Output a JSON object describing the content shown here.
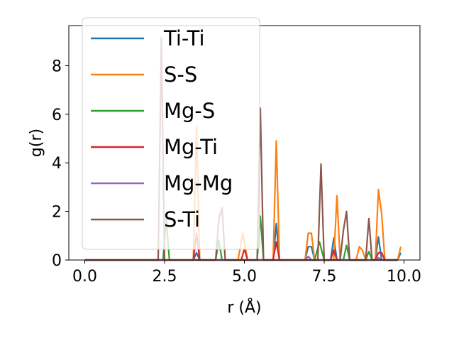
{
  "chart_data": {
    "type": "line",
    "xlabel": "r (Å)",
    "ylabel": "g(r)",
    "xlim": [
      -0.5,
      10.5
    ],
    "ylim": [
      0,
      9.65
    ],
    "xticks": [
      0.0,
      2.5,
      5.0,
      7.5,
      10.0
    ],
    "xtick_labels": [
      "0.0",
      "2.5",
      "5.0",
      "7.5",
      "10.0"
    ],
    "yticks": [
      0,
      2,
      4,
      6,
      8
    ],
    "ytick_labels": [
      "0",
      "2",
      "4",
      "6",
      "8"
    ],
    "grid": false,
    "legend_position": "top-left",
    "series": [
      {
        "name": "Ti-Ti",
        "color": "#1f77b4",
        "points": [
          [
            0,
            0
          ],
          [
            3.4,
            0
          ],
          [
            3.5,
            0.3
          ],
          [
            3.6,
            0
          ],
          [
            5.9,
            0
          ],
          [
            6.0,
            1.5
          ],
          [
            6.1,
            0
          ],
          [
            6.9,
            0
          ],
          [
            7.0,
            0.55
          ],
          [
            7.1,
            0.55
          ],
          [
            7.2,
            0
          ],
          [
            7.7,
            0
          ],
          [
            7.8,
            0.9
          ],
          [
            7.9,
            0
          ],
          [
            9.1,
            0
          ],
          [
            9.2,
            0.95
          ],
          [
            9.3,
            0
          ],
          [
            9.8,
            0
          ],
          [
            9.9,
            0.3
          ]
        ]
      },
      {
        "name": "S-S",
        "color": "#ff7f0e",
        "points": [
          [
            0,
            0
          ],
          [
            3.4,
            0
          ],
          [
            3.5,
            5.5
          ],
          [
            3.6,
            0
          ],
          [
            4.8,
            0
          ],
          [
            4.95,
            1.1
          ],
          [
            5.1,
            0
          ],
          [
            5.9,
            0
          ],
          [
            6.0,
            4.9
          ],
          [
            6.1,
            0
          ],
          [
            6.9,
            0
          ],
          [
            7.0,
            1.1
          ],
          [
            7.1,
            1.1
          ],
          [
            7.2,
            0
          ],
          [
            7.8,
            0
          ],
          [
            7.9,
            2.65
          ],
          [
            8.0,
            0
          ],
          [
            8.5,
            0
          ],
          [
            8.6,
            0.55
          ],
          [
            8.7,
            0.4
          ],
          [
            8.8,
            0
          ],
          [
            9.1,
            0
          ],
          [
            9.2,
            2.9
          ],
          [
            9.3,
            1.9
          ],
          [
            9.4,
            0
          ],
          [
            9.8,
            0
          ],
          [
            9.9,
            0.55
          ]
        ]
      },
      {
        "name": "Mg-S",
        "color": "#2ca02c",
        "points": [
          [
            0,
            0
          ],
          [
            2.45,
            0
          ],
          [
            2.55,
            1.7
          ],
          [
            2.65,
            0
          ],
          [
            4.1,
            0
          ],
          [
            4.2,
            0.8
          ],
          [
            4.3,
            0
          ],
          [
            5.4,
            0
          ],
          [
            5.5,
            1.8
          ],
          [
            5.6,
            0
          ],
          [
            7.2,
            0
          ],
          [
            7.35,
            0.75
          ],
          [
            7.5,
            0
          ],
          [
            8.1,
            0
          ],
          [
            8.2,
            0.6
          ],
          [
            8.3,
            0
          ],
          [
            8.8,
            0
          ],
          [
            8.9,
            0.35
          ],
          [
            9.0,
            0
          ],
          [
            9.8,
            0
          ]
        ]
      },
      {
        "name": "Mg-Ti",
        "color": "#d62728",
        "points": [
          [
            0,
            0
          ],
          [
            3.4,
            0
          ],
          [
            3.5,
            1.1
          ],
          [
            3.6,
            0
          ],
          [
            4.9,
            0
          ],
          [
            5.0,
            0.45
          ],
          [
            5.1,
            0
          ],
          [
            5.9,
            0
          ],
          [
            6.0,
            0.75
          ],
          [
            6.1,
            0
          ],
          [
            7.7,
            0
          ],
          [
            7.8,
            0.4
          ],
          [
            7.9,
            0
          ],
          [
            9.1,
            0
          ],
          [
            9.2,
            0.3
          ],
          [
            9.3,
            0.3
          ],
          [
            9.4,
            0
          ],
          [
            9.8,
            0
          ]
        ]
      },
      {
        "name": "Mg-Mg",
        "color": "#9467bd",
        "points": [
          [
            0,
            0
          ],
          [
            6.9,
            0
          ],
          [
            7.0,
            0.15
          ],
          [
            7.1,
            0
          ],
          [
            9.1,
            0
          ],
          [
            9.2,
            0.1
          ],
          [
            9.3,
            0
          ],
          [
            9.8,
            0
          ]
        ]
      },
      {
        "name": "S-Ti",
        "color": "#8c564b",
        "points": [
          [
            0,
            0
          ],
          [
            2.3,
            0
          ],
          [
            2.4,
            9.15
          ],
          [
            2.5,
            0
          ],
          [
            4.1,
            0
          ],
          [
            4.2,
            1.7
          ],
          [
            4.3,
            2.15
          ],
          [
            4.4,
            0
          ],
          [
            5.4,
            0
          ],
          [
            5.5,
            6.25
          ],
          [
            5.6,
            0
          ],
          [
            7.3,
            0
          ],
          [
            7.4,
            3.95
          ],
          [
            7.5,
            0
          ],
          [
            8.0,
            0
          ],
          [
            8.1,
            1.2
          ],
          [
            8.2,
            2.0
          ],
          [
            8.3,
            0
          ],
          [
            8.8,
            0
          ],
          [
            8.9,
            1.7
          ],
          [
            9.0,
            0
          ],
          [
            9.8,
            0
          ]
        ]
      }
    ]
  }
}
